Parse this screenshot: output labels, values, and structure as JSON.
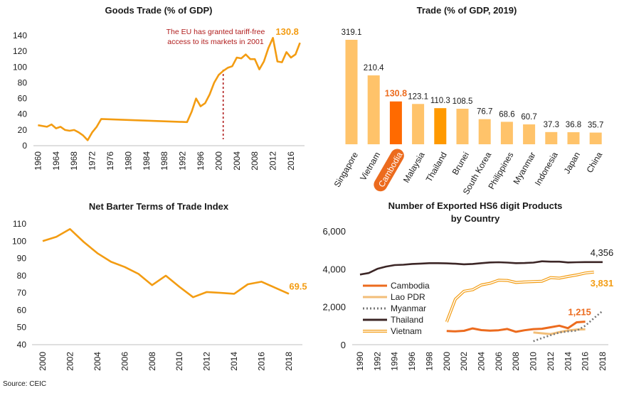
{
  "colors": {
    "orange": "#f39c12",
    "light_orange": "#ffc36a",
    "dark_orange": "#ff6a00",
    "thai_orange": "#ff9900",
    "cambodia": "#ec6b1e",
    "lao": "#f2be78",
    "myanmar": "#777777",
    "thailand": "#3c2626",
    "annotation": "#b01c1c"
  },
  "source": "Source: CEIC",
  "chart_data": [
    {
      "id": "goods_trade",
      "type": "line",
      "title": "Goods Trade (% of GDP)",
      "xlim": [
        1959,
        2019
      ],
      "ylim": [
        0,
        140
      ],
      "yticks": [
        0,
        20,
        40,
        60,
        80,
        100,
        120,
        140
      ],
      "xticks": [
        1960,
        1964,
        1968,
        1972,
        1976,
        1980,
        1984,
        1988,
        1992,
        1996,
        2000,
        2004,
        2008,
        2012,
        2016
      ],
      "series": [
        {
          "name": "Cambodia",
          "x": [
            1960,
            1962,
            1963,
            1964,
            1965,
            1966,
            1967,
            1968,
            1969,
            1970,
            1971,
            1972,
            1973,
            1974,
            1993,
            1994,
            1995,
            1996,
            1997,
            1998,
            1999,
            2000,
            2001,
            2002,
            2003,
            2004,
            2005,
            2006,
            2007,
            2008,
            2009,
            2010,
            2011,
            2012,
            2013,
            2014,
            2015,
            2016,
            2017,
            2018
          ],
          "values": [
            26,
            24,
            27,
            22,
            24,
            20,
            19,
            20,
            17,
            13,
            7,
            17,
            24,
            34,
            30,
            43,
            60,
            50,
            54,
            65,
            80,
            90,
            95,
            99,
            101,
            112,
            111,
            116,
            110,
            110,
            97,
            107,
            124,
            137,
            107,
            106,
            119,
            112,
            116,
            130.8
          ]
        }
      ],
      "vline_year": 2001,
      "annotation_lines": [
        "The EU has granted tariff-free",
        "access to its markets in 2001"
      ],
      "end_label": "130.8"
    },
    {
      "id": "trade_2019",
      "type": "bar",
      "title": "Trade (% of GDP, 2019)",
      "categories": [
        "Singapore",
        "Vietnam",
        "Cambodia",
        "Malaysia",
        "Thailand",
        "Brunei",
        "South Korea",
        "Philippines",
        "Myanmar",
        "Indonesia",
        "Japan",
        "China"
      ],
      "values": [
        319.1,
        210.4,
        130.8,
        123.1,
        110.3,
        108.5,
        76.7,
        68.6,
        60.7,
        37.3,
        36.8,
        35.7
      ],
      "value_labels": [
        "319.1",
        "210.4",
        "130.8",
        "123.1",
        "110.3",
        "108.5",
        "76.7",
        "68.6",
        "60.7",
        "37.3",
        "36.8",
        "35.7"
      ],
      "highlight": "Cambodia",
      "ylim": [
        0,
        319.1
      ]
    },
    {
      "id": "barter_terms",
      "type": "line",
      "title": "Net Barter Terms of Trade Index",
      "xlim": [
        2000,
        2018
      ],
      "ylim": [
        40,
        110
      ],
      "yticks": [
        40,
        50,
        60,
        70,
        80,
        90,
        100,
        110
      ],
      "xticks": [
        2000,
        2002,
        2004,
        2006,
        2008,
        2010,
        2012,
        2014,
        2016,
        2018
      ],
      "series": [
        {
          "name": "Cambodia",
          "x": [
            2000,
            2001,
            2002,
            2003,
            2004,
            2005,
            2006,
            2007,
            2008,
            2009,
            2010,
            2011,
            2012,
            2013,
            2014,
            2015,
            2016,
            2017,
            2018
          ],
          "values": [
            100,
            102.5,
            107,
            99.5,
            93,
            88,
            85,
            81,
            74.5,
            80,
            73.5,
            67.5,
            70.5,
            70,
            69.5,
            75,
            76.5,
            73,
            69.5
          ]
        }
      ],
      "end_label": "69.5"
    },
    {
      "id": "hs6_products",
      "type": "line",
      "title": "Number of Exported HS6 digit Products",
      "subtitle": "by Country",
      "xlim": [
        1990,
        2018
      ],
      "ylim": [
        0,
        6000
      ],
      "yticks": [
        0,
        2000,
        4000,
        6000
      ],
      "ytick_labels": [
        "0",
        "2,000",
        "4,000",
        "6,000"
      ],
      "xticks": [
        1990,
        1992,
        1994,
        1996,
        1998,
        2000,
        2002,
        2004,
        2006,
        2008,
        2010,
        2012,
        2014,
        2016,
        2018
      ],
      "series": [
        {
          "name": "Cambodia",
          "x": [
            2000,
            2001,
            2002,
            2003,
            2004,
            2005,
            2006,
            2007,
            2008,
            2009,
            2010,
            2011,
            2012,
            2013,
            2014,
            2015,
            2016
          ],
          "values": [
            720,
            700,
            730,
            860,
            770,
            740,
            760,
            830,
            680,
            760,
            820,
            840,
            920,
            1000,
            870,
            1180,
            1215
          ]
        },
        {
          "name": "Lao PDR",
          "x": [
            2010,
            2011,
            2012,
            2013,
            2014,
            2015,
            2016
          ],
          "values": [
            650,
            600,
            560,
            660,
            750,
            800,
            810
          ]
        },
        {
          "name": "Myanmar",
          "x": [
            2010,
            2011,
            2012,
            2013,
            2014,
            2015,
            2016,
            2017,
            2018
          ],
          "values": [
            180,
            350,
            500,
            640,
            700,
            740,
            1000,
            1400,
            1780
          ]
        },
        {
          "name": "Thailand",
          "x": [
            1990,
            1991,
            1992,
            1993,
            1994,
            1995,
            1996,
            1997,
            1998,
            1999,
            2000,
            2001,
            2002,
            2003,
            2004,
            2005,
            2006,
            2007,
            2008,
            2009,
            2010,
            2011,
            2012,
            2013,
            2014,
            2015,
            2016,
            2017,
            2018
          ],
          "values": [
            3700,
            3780,
            4000,
            4120,
            4200,
            4220,
            4260,
            4280,
            4300,
            4300,
            4290,
            4270,
            4240,
            4260,
            4300,
            4340,
            4350,
            4330,
            4300,
            4310,
            4330,
            4400,
            4380,
            4380,
            4340,
            4350,
            4356,
            4356,
            4356
          ]
        },
        {
          "name": "Vietnam",
          "x": [
            2000,
            2001,
            2002,
            2003,
            2004,
            2005,
            2006,
            2007,
            2008,
            2009,
            2010,
            2011,
            2012,
            2013,
            2014,
            2015,
            2016,
            2017
          ],
          "values": [
            1200,
            2400,
            2820,
            2900,
            3150,
            3240,
            3400,
            3390,
            3280,
            3310,
            3330,
            3350,
            3540,
            3510,
            3600,
            3680,
            3780,
            3831
          ]
        }
      ],
      "legend": [
        "Cambodia",
        "Lao PDR",
        "Myanmar",
        "Thailand",
        "Vietnam"
      ],
      "end_labels": {
        "Thailand": "4,356",
        "Vietnam": "3,831",
        "Cambodia": "1,215"
      }
    }
  ]
}
